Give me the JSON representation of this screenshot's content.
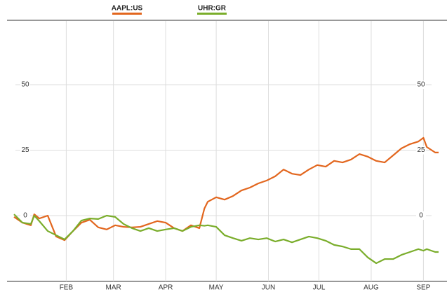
{
  "chart_data": {
    "type": "line",
    "x": [
      0,
      5,
      10,
      12,
      15,
      20,
      25,
      30,
      35,
      40,
      45,
      50,
      55,
      60,
      65,
      70,
      75,
      80,
      85,
      90,
      95,
      100,
      105,
      110,
      113,
      115,
      120,
      125,
      130,
      135,
      140,
      145,
      150,
      155,
      160,
      165,
      170,
      175,
      180,
      185,
      190,
      195,
      200,
      205,
      210,
      215,
      220,
      225,
      230,
      235,
      240,
      243,
      245,
      250,
      252
    ],
    "series": [
      {
        "name": "AAPL:US",
        "color": "#e2661e",
        "values": [
          -0.5,
          -2.7,
          -3.7,
          0.5,
          -1.1,
          0,
          -8.0,
          -9.4,
          -5.9,
          -2.7,
          -1.6,
          -4.5,
          -5.3,
          -3.7,
          -4.3,
          -4.5,
          -4.3,
          -3.2,
          -2.1,
          -2.7,
          -4.8,
          -5.9,
          -3.7,
          -4.8,
          2.7,
          5.3,
          7.0,
          6.1,
          7.5,
          9.6,
          10.7,
          12.3,
          13.4,
          15.0,
          17.6,
          16.0,
          15.5,
          17.6,
          19.3,
          18.7,
          20.9,
          20.3,
          21.4,
          23.5,
          22.5,
          20.9,
          20.3,
          23.0,
          25.7,
          27.3,
          28.3,
          29.7,
          26.2,
          24.1,
          24.1
        ]
      },
      {
        "name": "UHR:GR",
        "color": "#7aad2b",
        "values": [
          0.5,
          -2.7,
          -3.2,
          0,
          -2.1,
          -5.9,
          -7.5,
          -9.1,
          -5.9,
          -1.9,
          -1.1,
          -1.3,
          0,
          -0.5,
          -3.2,
          -4.8,
          -5.9,
          -4.8,
          -5.9,
          -5.3,
          -4.8,
          -5.9,
          -4.3,
          -3.7,
          -3.9,
          -3.7,
          -4.3,
          -7.5,
          -8.6,
          -9.6,
          -8.6,
          -9.1,
          -8.6,
          -9.9,
          -9.1,
          -10.2,
          -9.1,
          -8.0,
          -8.6,
          -9.6,
          -11.2,
          -11.8,
          -12.8,
          -12.8,
          -16.0,
          -18.2,
          -16.6,
          -16.6,
          -15.0,
          -13.9,
          -12.8,
          -13.4,
          -12.8,
          -13.9,
          -13.9
        ]
      }
    ],
    "xlim": [
      0,
      252
    ],
    "xticks": [
      {
        "value": 31,
        "label": "FEB"
      },
      {
        "value": 59,
        "label": "MAR"
      },
      {
        "value": 90,
        "label": "APR"
      },
      {
        "value": 120,
        "label": "MAY"
      },
      {
        "value": 151,
        "label": "JUN"
      },
      {
        "value": 181,
        "label": "JUL"
      },
      {
        "value": 212,
        "label": "AUG"
      },
      {
        "value": 243,
        "label": "SEP"
      }
    ],
    "ylim": [
      -25,
      75
    ],
    "yticks": [
      0,
      25,
      50
    ],
    "grid": true
  }
}
